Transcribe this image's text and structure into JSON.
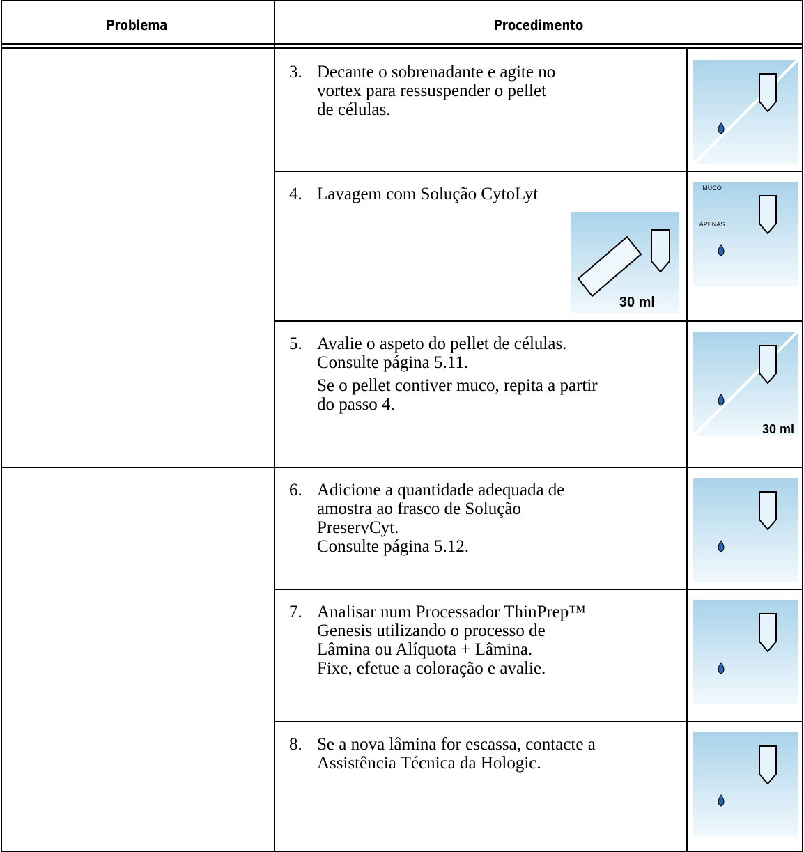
{
  "header": {
    "problem": "Problema",
    "procedure": "Procedimento"
  },
  "steps": [
    {
      "number": "3.",
      "lines": [
        "Decante o sobrenadante e agite no",
        "vortex para ressuspender o pellet",
        "de células."
      ]
    },
    {
      "number": "4.",
      "lines": [
        "Lavagem com Solução CytoLyt"
      ],
      "icon_labels": [
        "30 ml",
        "MUCO",
        "APENAS"
      ]
    },
    {
      "number": "5.",
      "lines": [
        "Avalie o aspeto do pellet de células.",
        "Consulte página 5.11.",
        "Se o pellet contiver muco, repita a partir",
        "do passo 4."
      ],
      "icon_labels": [
        "30 ml"
      ]
    },
    {
      "number": "6.",
      "lines": [
        "Adicione a quantidade adequada de",
        "amostra ao frasco de Solução",
        "PreservCyt.",
        "Consulte página 5.12."
      ]
    },
    {
      "number": "7.",
      "lines": [
        "Analisar num Processador ThinPrep™",
        "Genesis utilizando o processo de",
        "Lâmina ou Alíquota + Lâmina.",
        "Fixe, efetue a coloração e avalie."
      ]
    },
    {
      "number": "8.",
      "lines": [
        "Se a nova lâmina for escassa, contacte a",
        "Assistência Técnica da Hologic."
      ]
    }
  ]
}
